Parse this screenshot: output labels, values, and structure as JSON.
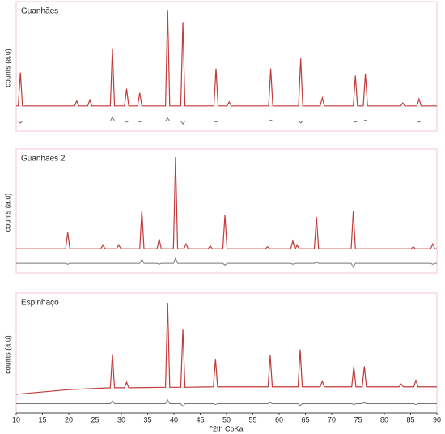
{
  "chart_data": [
    {
      "type": "line",
      "title": "Guanhães",
      "ylabel": "counts (a.u)",
      "xlim": [
        10,
        90
      ],
      "ylim": [
        -20,
        105
      ],
      "x": [
        10,
        10.4,
        10.8,
        11.2,
        21.1,
        21.5,
        21.9,
        23.6,
        24,
        24.4,
        27.9,
        28.3,
        28.7,
        30.6,
        31,
        31.4,
        33.1,
        33.5,
        33.9,
        38.4,
        38.8,
        39.2,
        41.3,
        41.7,
        42.1,
        47.6,
        48,
        48.4,
        50.1,
        50.5,
        50.9,
        58,
        58.4,
        58.8,
        63.7,
        64.1,
        64.5,
        67.8,
        68.2,
        68.6,
        74.1,
        74.5,
        74.9,
        76,
        76.4,
        76.8,
        83.1,
        83.5,
        83.9,
        86.2,
        86.6,
        87,
        90
      ],
      "series": [
        {
          "color": "#c23a3a",
          "values": [
            5,
            5,
            38,
            5,
            5,
            10,
            5,
            5,
            11,
            5,
            5,
            62,
            5,
            5,
            22,
            5,
            5,
            18,
            5,
            5,
            100,
            5,
            5,
            88,
            5,
            5,
            42,
            5,
            5,
            9,
            5,
            5,
            42,
            5,
            5,
            52,
            5,
            5,
            13,
            5,
            5,
            35,
            5,
            5,
            37,
            5,
            5,
            8,
            5,
            5,
            12,
            5,
            5
          ]
        },
        {
          "color": "#777777",
          "values": [
            -10,
            -10,
            -12,
            -10,
            -10,
            -10,
            -10,
            -10,
            -10,
            -10,
            -10,
            -6,
            -10,
            -10,
            -11,
            -10,
            -10,
            -11,
            -10,
            -10,
            -7,
            -10,
            -10,
            -13,
            -10,
            -10,
            -11,
            -10,
            -10,
            -10,
            -10,
            -10,
            -9,
            -10,
            -10,
            -12,
            -10,
            -10,
            -10,
            -10,
            -10,
            -11,
            -10,
            -10,
            -9,
            -10,
            -10,
            -10,
            -10,
            -10,
            -11,
            -10,
            -10
          ]
        }
      ]
    },
    {
      "type": "line",
      "title": "Guanhães 2",
      "ylabel": "counts (a.u)",
      "xlim": [
        10,
        90
      ],
      "ylim": [
        -20,
        105
      ],
      "x": [
        10,
        19.4,
        19.8,
        20.2,
        26.1,
        26.5,
        26.9,
        29.1,
        29.5,
        29.9,
        33.5,
        33.9,
        34.3,
        36.8,
        37.2,
        37.6,
        39.9,
        40.3,
        40.7,
        41.9,
        42.3,
        42.7,
        46.5,
        46.9,
        47.3,
        49.3,
        49.7,
        50.1,
        57.4,
        57.8,
        58.2,
        62.2,
        62.6,
        63,
        63.1,
        63.4,
        63.8,
        66.7,
        67.1,
        67.5,
        73.7,
        74.1,
        74.5,
        85.1,
        85.5,
        85.9,
        88.8,
        89.2,
        89.6,
        90
      ],
      "series": [
        {
          "color": "#c23a3a",
          "values": [
            5,
            5,
            22,
            5,
            5,
            9,
            5,
            5,
            9,
            5,
            5,
            45,
            5,
            5,
            15,
            5,
            5,
            100,
            5,
            5,
            10,
            5,
            5,
            8,
            5,
            5,
            40,
            5,
            5,
            7,
            5,
            5,
            13,
            5,
            5,
            9,
            5,
            5,
            38,
            5,
            5,
            44,
            5,
            5,
            7,
            5,
            5,
            10,
            5,
            5
          ]
        },
        {
          "color": "#777777",
          "values": [
            -10,
            -10,
            -11,
            -10,
            -10,
            -10,
            -10,
            -10,
            -10,
            -10,
            -10,
            -6,
            -10,
            -10,
            -11,
            -10,
            -10,
            -5,
            -10,
            -10,
            -10,
            -10,
            -10,
            -10,
            -10,
            -10,
            -12,
            -10,
            -10,
            -10,
            -10,
            -10,
            -11,
            -10,
            -10,
            -10,
            -10,
            -10,
            -9,
            -10,
            -10,
            -14,
            -10,
            -10,
            -10,
            -10,
            -10,
            -11,
            -10,
            -10
          ]
        }
      ]
    },
    {
      "type": "line",
      "title": "Espinhaço",
      "ylabel": "counts (a.u)",
      "xlabel": "°2th CoKa",
      "xlim": [
        10,
        90
      ],
      "ylim": [
        -20,
        105
      ],
      "xticks": [
        10,
        15,
        20,
        25,
        30,
        35,
        40,
        45,
        50,
        55,
        60,
        65,
        70,
        75,
        80,
        85,
        90
      ],
      "x": [
        10,
        20,
        27.9,
        28.3,
        28.7,
        30.6,
        31,
        31.4,
        38.4,
        38.8,
        39.2,
        41.3,
        41.7,
        42.1,
        47.5,
        47.9,
        48.3,
        57.9,
        58.3,
        58.7,
        63.6,
        64,
        64.4,
        67.8,
        68.2,
        68.6,
        73.8,
        74.2,
        74.6,
        75.8,
        76.2,
        76.6,
        82.8,
        83.2,
        83.6,
        85.6,
        86,
        86.4,
        90
      ],
      "series": [
        {
          "color": "#c23a3a",
          "values": [
            0,
            5,
            7,
            43,
            7,
            7,
            13,
            7,
            7.5,
            98,
            7.5,
            7.5,
            70,
            7.5,
            8,
            38,
            8,
            8,
            42,
            8,
            8,
            48,
            8,
            8,
            14,
            8,
            8,
            30,
            8,
            8,
            30,
            8,
            8,
            11,
            8,
            8,
            15,
            8,
            8
          ]
        },
        {
          "color": "#777777",
          "values": [
            -10,
            -10,
            -10,
            -7,
            -10,
            -10,
            -10,
            -10,
            -10,
            -6,
            -10,
            -10,
            -13,
            -10,
            -10,
            -11,
            -10,
            -10,
            -9,
            -10,
            -10,
            -12,
            -10,
            -10,
            -10,
            -10,
            -10,
            -11,
            -10,
            -10,
            -9,
            -10,
            -10,
            -10,
            -10,
            -10,
            -11,
            -10,
            -10
          ]
        }
      ]
    }
  ]
}
